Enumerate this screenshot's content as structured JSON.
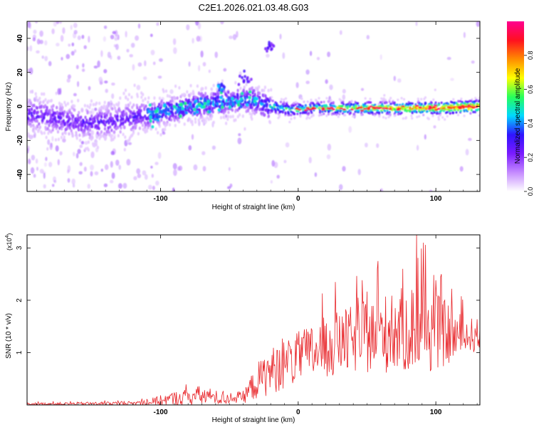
{
  "title": "C2E1.2026.021.03.48.G03",
  "chart_data": [
    {
      "type": "heatmap",
      "name": "spectrogram",
      "xlabel": "Height of straight line (km)",
      "ylabel": "Frequency (Hz)",
      "xlim": [
        -197,
        132
      ],
      "ylim": [
        -50,
        50
      ],
      "xticks": [
        -100,
        0,
        100
      ],
      "xtick_labels": [
        "-100",
        "0",
        "100"
      ],
      "yticks": [
        -40,
        -20,
        0,
        20,
        40
      ],
      "ytick_labels": [
        "-40",
        "-20",
        "0",
        "20",
        "40"
      ],
      "colorbar": {
        "label": "Normalized spectral amplitude",
        "range": [
          0,
          1
        ],
        "ticks": [
          0.0,
          0.2,
          0.4,
          0.6,
          0.8
        ],
        "tick_labels": [
          "0.0",
          "0.2",
          "0.4",
          "0.6",
          "0.8"
        ],
        "colors": [
          "#ffffff",
          "#c58bff",
          "#7a1bff",
          "#2f14ff",
          "#00d8ff",
          "#27ff5a",
          "#ffff00",
          "#ff8c00",
          "#ff1020",
          "#ff0090"
        ]
      },
      "ridge": [
        {
          "x": -190,
          "y": -5
        },
        {
          "x": -170,
          "y": -8
        },
        {
          "x": -150,
          "y": -10
        },
        {
          "x": -130,
          "y": -8
        },
        {
          "x": -110,
          "y": -5
        },
        {
          "x": -90,
          "y": -2
        },
        {
          "x": -70,
          "y": 1
        },
        {
          "x": -50,
          "y": 3
        },
        {
          "x": -35,
          "y": 4
        },
        {
          "x": -20,
          "y": 0
        },
        {
          "x": -5,
          "y": -2
        },
        {
          "x": 10,
          "y": -1
        },
        {
          "x": 40,
          "y": -1
        },
        {
          "x": 70,
          "y": -1
        },
        {
          "x": 100,
          "y": -1
        },
        {
          "x": 132,
          "y": 0
        }
      ],
      "features": [
        {
          "x": -55,
          "y": 11,
          "amp": 0.45
        },
        {
          "x": -38,
          "y": 17,
          "amp": 0.3
        },
        {
          "x": -22,
          "y": 35,
          "amp": 0.3
        }
      ]
    },
    {
      "type": "line",
      "name": "snr",
      "xlabel": "Height of straight line (km)",
      "ylabel": "SNR (10 * v/v)",
      "scale_label": "(x10",
      "scale_exponent": "4",
      "xlim": [
        -197,
        132
      ],
      "ylim": [
        0,
        3.25
      ],
      "xticks": [
        -100,
        0,
        100
      ],
      "xtick_labels": [
        "-100",
        "0",
        "100"
      ],
      "yticks": [
        1,
        2,
        3
      ],
      "ytick_labels": [
        "1",
        "2",
        "3"
      ],
      "color": "#e8262a",
      "envelope": [
        {
          "x": -197,
          "mean": 0.02,
          "spread": 0.02
        },
        {
          "x": -120,
          "mean": 0.03,
          "spread": 0.04
        },
        {
          "x": -110,
          "mean": 0.05,
          "spread": 0.06
        },
        {
          "x": -90,
          "mean": 0.12,
          "spread": 0.14
        },
        {
          "x": -70,
          "mean": 0.18,
          "spread": 0.2
        },
        {
          "x": -55,
          "mean": 0.12,
          "spread": 0.12
        },
        {
          "x": -40,
          "mean": 0.15,
          "spread": 0.12
        },
        {
          "x": -30,
          "mean": 0.45,
          "spread": 0.35
        },
        {
          "x": -20,
          "mean": 0.65,
          "spread": 0.45
        },
        {
          "x": 0,
          "mean": 0.9,
          "spread": 0.5
        },
        {
          "x": 20,
          "mean": 1.1,
          "spread": 0.6
        },
        {
          "x": 40,
          "mean": 1.25,
          "spread": 0.65
        },
        {
          "x": 60,
          "mean": 1.35,
          "spread": 0.75
        },
        {
          "x": 80,
          "mean": 1.45,
          "spread": 0.85
        },
        {
          "x": 90,
          "mean": 1.5,
          "spread": 0.95
        },
        {
          "x": 100,
          "mean": 1.4,
          "spread": 0.75
        },
        {
          "x": 120,
          "mean": 1.3,
          "spread": 0.4
        },
        {
          "x": 132,
          "mean": 1.35,
          "spread": 0.3
        }
      ],
      "peaks": [
        {
          "x": 58,
          "y": 2.75
        },
        {
          "x": 86,
          "y": 3.25
        },
        {
          "x": 91,
          "y": 3.1
        },
        {
          "x": 76,
          "y": 2.6
        },
        {
          "x": 104,
          "y": 2.5
        },
        {
          "x": 27,
          "y": 2.35
        }
      ]
    }
  ]
}
